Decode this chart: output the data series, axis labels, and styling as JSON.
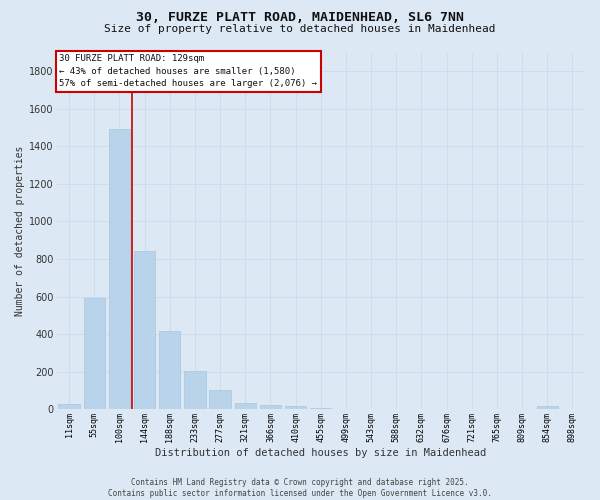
{
  "title_line1": "30, FURZE PLATT ROAD, MAIDENHEAD, SL6 7NN",
  "title_line2": "Size of property relative to detached houses in Maidenhead",
  "xlabel": "Distribution of detached houses by size in Maidenhead",
  "ylabel": "Number of detached properties",
  "categories": [
    "11sqm",
    "55sqm",
    "100sqm",
    "144sqm",
    "188sqm",
    "233sqm",
    "277sqm",
    "321sqm",
    "366sqm",
    "410sqm",
    "455sqm",
    "499sqm",
    "543sqm",
    "588sqm",
    "632sqm",
    "676sqm",
    "721sqm",
    "765sqm",
    "809sqm",
    "854sqm",
    "898sqm"
  ],
  "values": [
    30,
    590,
    1490,
    840,
    415,
    205,
    100,
    35,
    20,
    15,
    5,
    0,
    0,
    0,
    0,
    0,
    0,
    0,
    0,
    15,
    0
  ],
  "bar_color": "#b8d3ea",
  "bar_edge_color": "#a0bfd8",
  "grid_color": "#ccdaeb",
  "background_color": "#dce9f5",
  "vline_color": "#cc0000",
  "vline_x": 2.5,
  "annotation_line1": "30 FURZE PLATT ROAD: 129sqm",
  "annotation_line2": "← 43% of detached houses are smaller (1,580)",
  "annotation_line3": "57% of semi-detached houses are larger (2,076) →",
  "annotation_box_facecolor": "white",
  "annotation_box_edgecolor": "#cc0000",
  "ylim_max": 1900,
  "yticks": [
    0,
    200,
    400,
    600,
    800,
    1000,
    1200,
    1400,
    1600,
    1800
  ],
  "footer_line1": "Contains HM Land Registry data © Crown copyright and database right 2025.",
  "footer_line2": "Contains public sector information licensed under the Open Government Licence v3.0.",
  "title_fontsize": 9.5,
  "subtitle_fontsize": 8,
  "ylabel_fontsize": 7,
  "xlabel_fontsize": 7.5,
  "ytick_fontsize": 7,
  "xtick_fontsize": 6,
  "annotation_fontsize": 6.5,
  "footer_fontsize": 5.5
}
